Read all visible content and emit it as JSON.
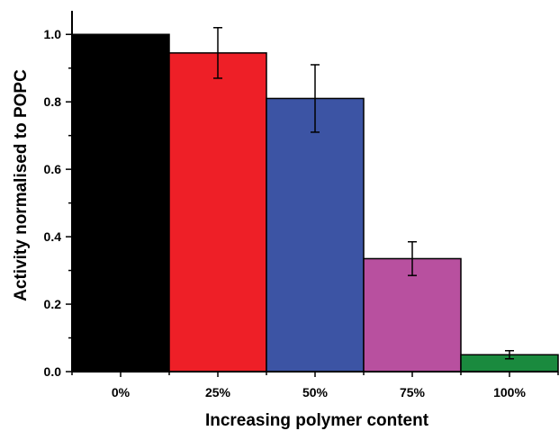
{
  "chart_data": {
    "type": "bar",
    "title": "",
    "xlabel": "Increasing polymer content",
    "ylabel": "Activity normalised to POPC",
    "categories": [
      "0%",
      "25%",
      "50%",
      "75%",
      "100%"
    ],
    "values": [
      1.0,
      0.945,
      0.81,
      0.335,
      0.05
    ],
    "errors": [
      0,
      0.075,
      0.1,
      0.05,
      0.012
    ],
    "colors": [
      "#000000",
      "#ee1f27",
      "#3c54a4",
      "#b8509f",
      "#1a8a3e"
    ],
    "ylim": [
      0,
      1.07
    ],
    "yticks": [
      "0.0",
      "0.2",
      "0.4",
      "0.6",
      "0.8",
      "1.0"
    ],
    "ytick_values": [
      0,
      0.2,
      0.4,
      0.6,
      0.8,
      1.0
    ],
    "grid": false,
    "legend": "none"
  }
}
